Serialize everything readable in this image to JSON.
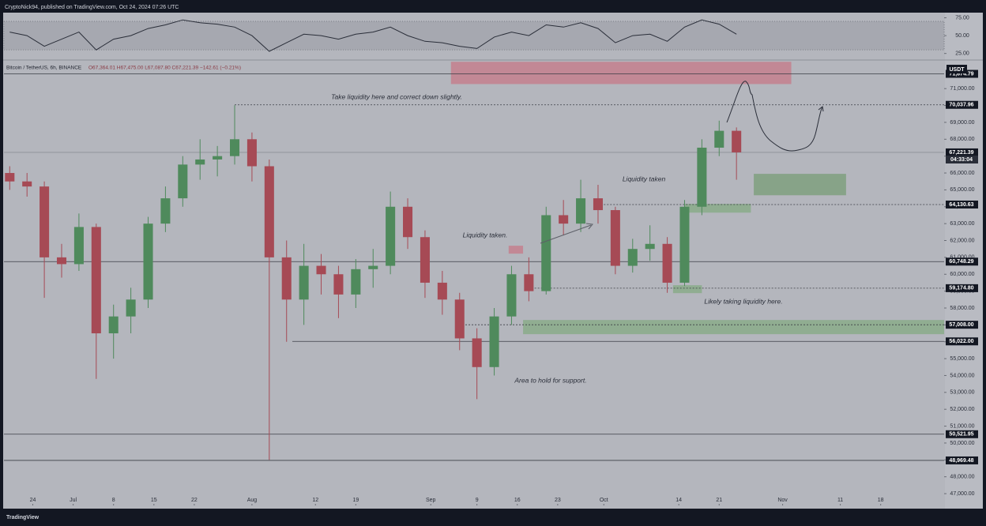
{
  "header": {
    "publisher": "CryptoNick94, published on TradingView.com, Oct 24, 2024 07:26 UTC",
    "symbol": "Bitcoin / TetherUS, 6h, BINANCE",
    "ohlc": "O67,364.01 H67,475.00 L67,087.80 C67,221.39 −142.61 (−0.21%)",
    "currency": "USDT",
    "countdown": "04:33:04",
    "footer": "TradingView"
  },
  "chart_data": [
    {
      "type": "line",
      "color": "#2a2e39",
      "x": [
        -4,
        -1,
        2,
        5,
        8,
        11,
        14,
        17,
        20,
        23,
        26,
        29,
        32,
        35,
        38,
        41,
        44,
        47,
        50,
        53,
        56,
        59,
        62,
        65,
        68,
        71,
        74,
        77,
        80,
        83,
        86,
        89,
        92,
        95,
        98,
        101,
        104,
        107,
        110,
        113,
        116,
        119,
        122
      ],
      "values": [
        55,
        50,
        35,
        45,
        55,
        30,
        45,
        50,
        60,
        65,
        72,
        68,
        66,
        62,
        50,
        28,
        40,
        52,
        50,
        45,
        52,
        55,
        62,
        50,
        42,
        40,
        35,
        32,
        48,
        55,
        50,
        65,
        62,
        68,
        60,
        40,
        50,
        52,
        42,
        62,
        72,
        66,
        52
      ],
      "band": [
        30,
        70
      ],
      "xlim": [
        -5,
        158
      ],
      "ylim": [
        18,
        80
      ],
      "yticks": [
        {
          "value": 75,
          "label": "75.00"
        },
        {
          "value": 50,
          "label": "50.00"
        },
        {
          "value": 25,
          "label": "25.00"
        }
      ]
    },
    {
      "type": "candlestick",
      "up_color": "#4f8a5c",
      "down_color": "#a64a55",
      "x": [
        -4,
        -1,
        2,
        5,
        8,
        11,
        14,
        17,
        20,
        23,
        26,
        29,
        32,
        35,
        38,
        41,
        44,
        47,
        50,
        53,
        56,
        59,
        62,
        65,
        68,
        71,
        74,
        77,
        80,
        83,
        86,
        89,
        92,
        95,
        98,
        101,
        104,
        107,
        110,
        113,
        116,
        119,
        122
      ],
      "open": [
        66000,
        65500,
        65200,
        61000,
        60600,
        62800,
        56500,
        57500,
        58500,
        63000,
        64500,
        66500,
        66800,
        67000,
        68000,
        66400,
        61000,
        58500,
        60500,
        60000,
        58800,
        60300,
        60500,
        64000,
        62200,
        59500,
        58500,
        56200,
        54500,
        57500,
        60000,
        59000,
        63500,
        63000,
        64500,
        63800,
        60500,
        61500,
        61800,
        59500,
        64000,
        67500,
        68500
      ],
      "high": [
        66400,
        66000,
        65500,
        61800,
        63600,
        63000,
        58200,
        59200,
        63400,
        65200,
        67000,
        68000,
        67600,
        70016,
        68400,
        66800,
        62000,
        61800,
        61200,
        60500,
        60900,
        61500,
        64900,
        64500,
        62600,
        60200,
        58900,
        56800,
        58000,
        60500,
        61000,
        64000,
        64400,
        65600,
        65300,
        64000,
        62100,
        62900,
        62200,
        64400,
        68000,
        69100,
        68700
      ],
      "low": [
        65000,
        64600,
        58600,
        59800,
        60200,
        53800,
        55000,
        56500,
        58000,
        62500,
        64000,
        65600,
        65800,
        66500,
        65500,
        49000,
        56000,
        57000,
        58800,
        57400,
        58000,
        59200,
        60000,
        61500,
        58600,
        57600,
        55500,
        52600,
        54000,
        57000,
        58400,
        58800,
        62300,
        62500,
        63000,
        60000,
        60100,
        60800,
        58900,
        59300,
        63500,
        67000,
        65600
      ],
      "close": [
        65500,
        65200,
        61000,
        60600,
        62800,
        56500,
        57500,
        58500,
        63000,
        64500,
        66500,
        66800,
        67000,
        68000,
        66400,
        61000,
        58500,
        60500,
        60000,
        58800,
        60300,
        60500,
        64000,
        62200,
        59500,
        58500,
        56200,
        54500,
        57500,
        60000,
        59000,
        63500,
        63000,
        64500,
        63800,
        60500,
        61500,
        61800,
        59500,
        64000,
        67500,
        68500,
        67221.39
      ],
      "xlim": [
        -5,
        158
      ],
      "ylim": [
        46300,
        72600
      ],
      "xticks": [
        {
          "value": 0,
          "label": "24"
        },
        {
          "value": 7,
          "label": "Jul"
        },
        {
          "value": 14,
          "label": "8"
        },
        {
          "value": 21,
          "label": "15"
        },
        {
          "value": 28,
          "label": "22"
        },
        {
          "value": 38,
          "label": "Aug"
        },
        {
          "value": 49,
          "label": "12"
        },
        {
          "value": 56,
          "label": "19"
        },
        {
          "value": 69,
          "label": "Sep"
        },
        {
          "value": 77,
          "label": "9"
        },
        {
          "value": 84,
          "label": "16"
        },
        {
          "value": 91,
          "label": "23"
        },
        {
          "value": 99,
          "label": "Oct"
        },
        {
          "value": 112,
          "label": "14"
        },
        {
          "value": 119,
          "label": "21"
        },
        {
          "value": 130,
          "label": "Nov"
        },
        {
          "value": 140,
          "label": "11"
        },
        {
          "value": 147,
          "label": "18"
        }
      ],
      "yticks": [
        {
          "value": 47000,
          "label": "47,000.00"
        },
        {
          "value": 48000,
          "label": "48,000.00"
        },
        {
          "value": 49000,
          "label": "49,000.00"
        },
        {
          "value": 50000,
          "label": "50,000.00"
        },
        {
          "value": 51000,
          "label": "51,000.00"
        },
        {
          "value": 52000,
          "label": "52,000.00"
        },
        {
          "value": 53000,
          "label": "53,000.00"
        },
        {
          "value": 54000,
          "label": "54,000.00"
        },
        {
          "value": 55000,
          "label": "55,000.00"
        },
        {
          "value": 56000,
          "label": "56,000.00"
        },
        {
          "value": 57000,
          "label": "57,000.00"
        },
        {
          "value": 58000,
          "label": "58,000.00"
        },
        {
          "value": 59000,
          "label": "59,000.00"
        },
        {
          "value": 60000,
          "label": "60,000.00"
        },
        {
          "value": 61000,
          "label": "61,000.00"
        },
        {
          "value": 62000,
          "label": "62,000.00"
        },
        {
          "value": 63000,
          "label": "63,000.00"
        },
        {
          "value": 64000,
          "label": "64,000.00"
        },
        {
          "value": 65000,
          "label": "65,000.00"
        },
        {
          "value": 66000,
          "label": "66,000.00"
        },
        {
          "value": 67000,
          "label": "67,000.00"
        },
        {
          "value": 68000,
          "label": "68,000.00"
        },
        {
          "value": 69000,
          "label": "69,000.00"
        },
        {
          "value": 70000,
          "label": "70,000.00"
        },
        {
          "value": 71000,
          "label": "71,000.00"
        }
      ],
      "levels": [
        {
          "value": 71874.79,
          "label": "71,874.79",
          "style": "solid",
          "from": -5
        },
        {
          "value": 70037.96,
          "label": "70,037.96",
          "style": "dotted",
          "from": 35
        },
        {
          "value": 67221.39,
          "label": "67,221.39",
          "style": "price",
          "from": -5
        },
        {
          "value": 64130.63,
          "label": "64,130.63",
          "style": "dotted",
          "from": 99
        },
        {
          "value": 60748.29,
          "label": "60,748.29",
          "style": "solid",
          "from": -5
        },
        {
          "value": 59174.8,
          "label": "59,174.80",
          "style": "dotted",
          "from": 87
        },
        {
          "value": 57008,
          "label": "57,008.00",
          "style": "dotted",
          "from": 75
        },
        {
          "value": 56022,
          "label": "56,022.00",
          "style": "solid",
          "from": 45
        },
        {
          "value": 50521.95,
          "label": "50,521.95",
          "style": "solid",
          "from": -5
        },
        {
          "value": 48969.48,
          "label": "48,969.48",
          "style": "solid",
          "from": -5
        }
      ],
      "zones": [
        {
          "x": [
            72.5,
            131.5
          ],
          "y": [
            71270,
            72590
          ],
          "color": "#c4808e"
        },
        {
          "x": [
            125,
            141
          ],
          "y": [
            64680,
            65950
          ],
          "color": "#7fa07f"
        },
        {
          "x": [
            113,
            124.5
          ],
          "y": [
            63650,
            64170
          ],
          "color": "#8aac8a"
        },
        {
          "x": [
            85,
            158
          ],
          "y": [
            56450,
            57290
          ],
          "color": "#8aac8a"
        },
        {
          "x": [
            111,
            116
          ],
          "y": [
            58880,
            59350
          ],
          "color": "#8aac8a"
        },
        {
          "x": [
            82.5,
            85
          ],
          "y": [
            61220,
            61690
          ],
          "color": "#c4808e"
        }
      ],
      "annotations": [
        "Take liquidity here and correct down slightly.",
        "Liquidity taken",
        "Liquidity taken.",
        "Likely taking liquidity here.",
        "Area to hold for support."
      ]
    }
  ]
}
